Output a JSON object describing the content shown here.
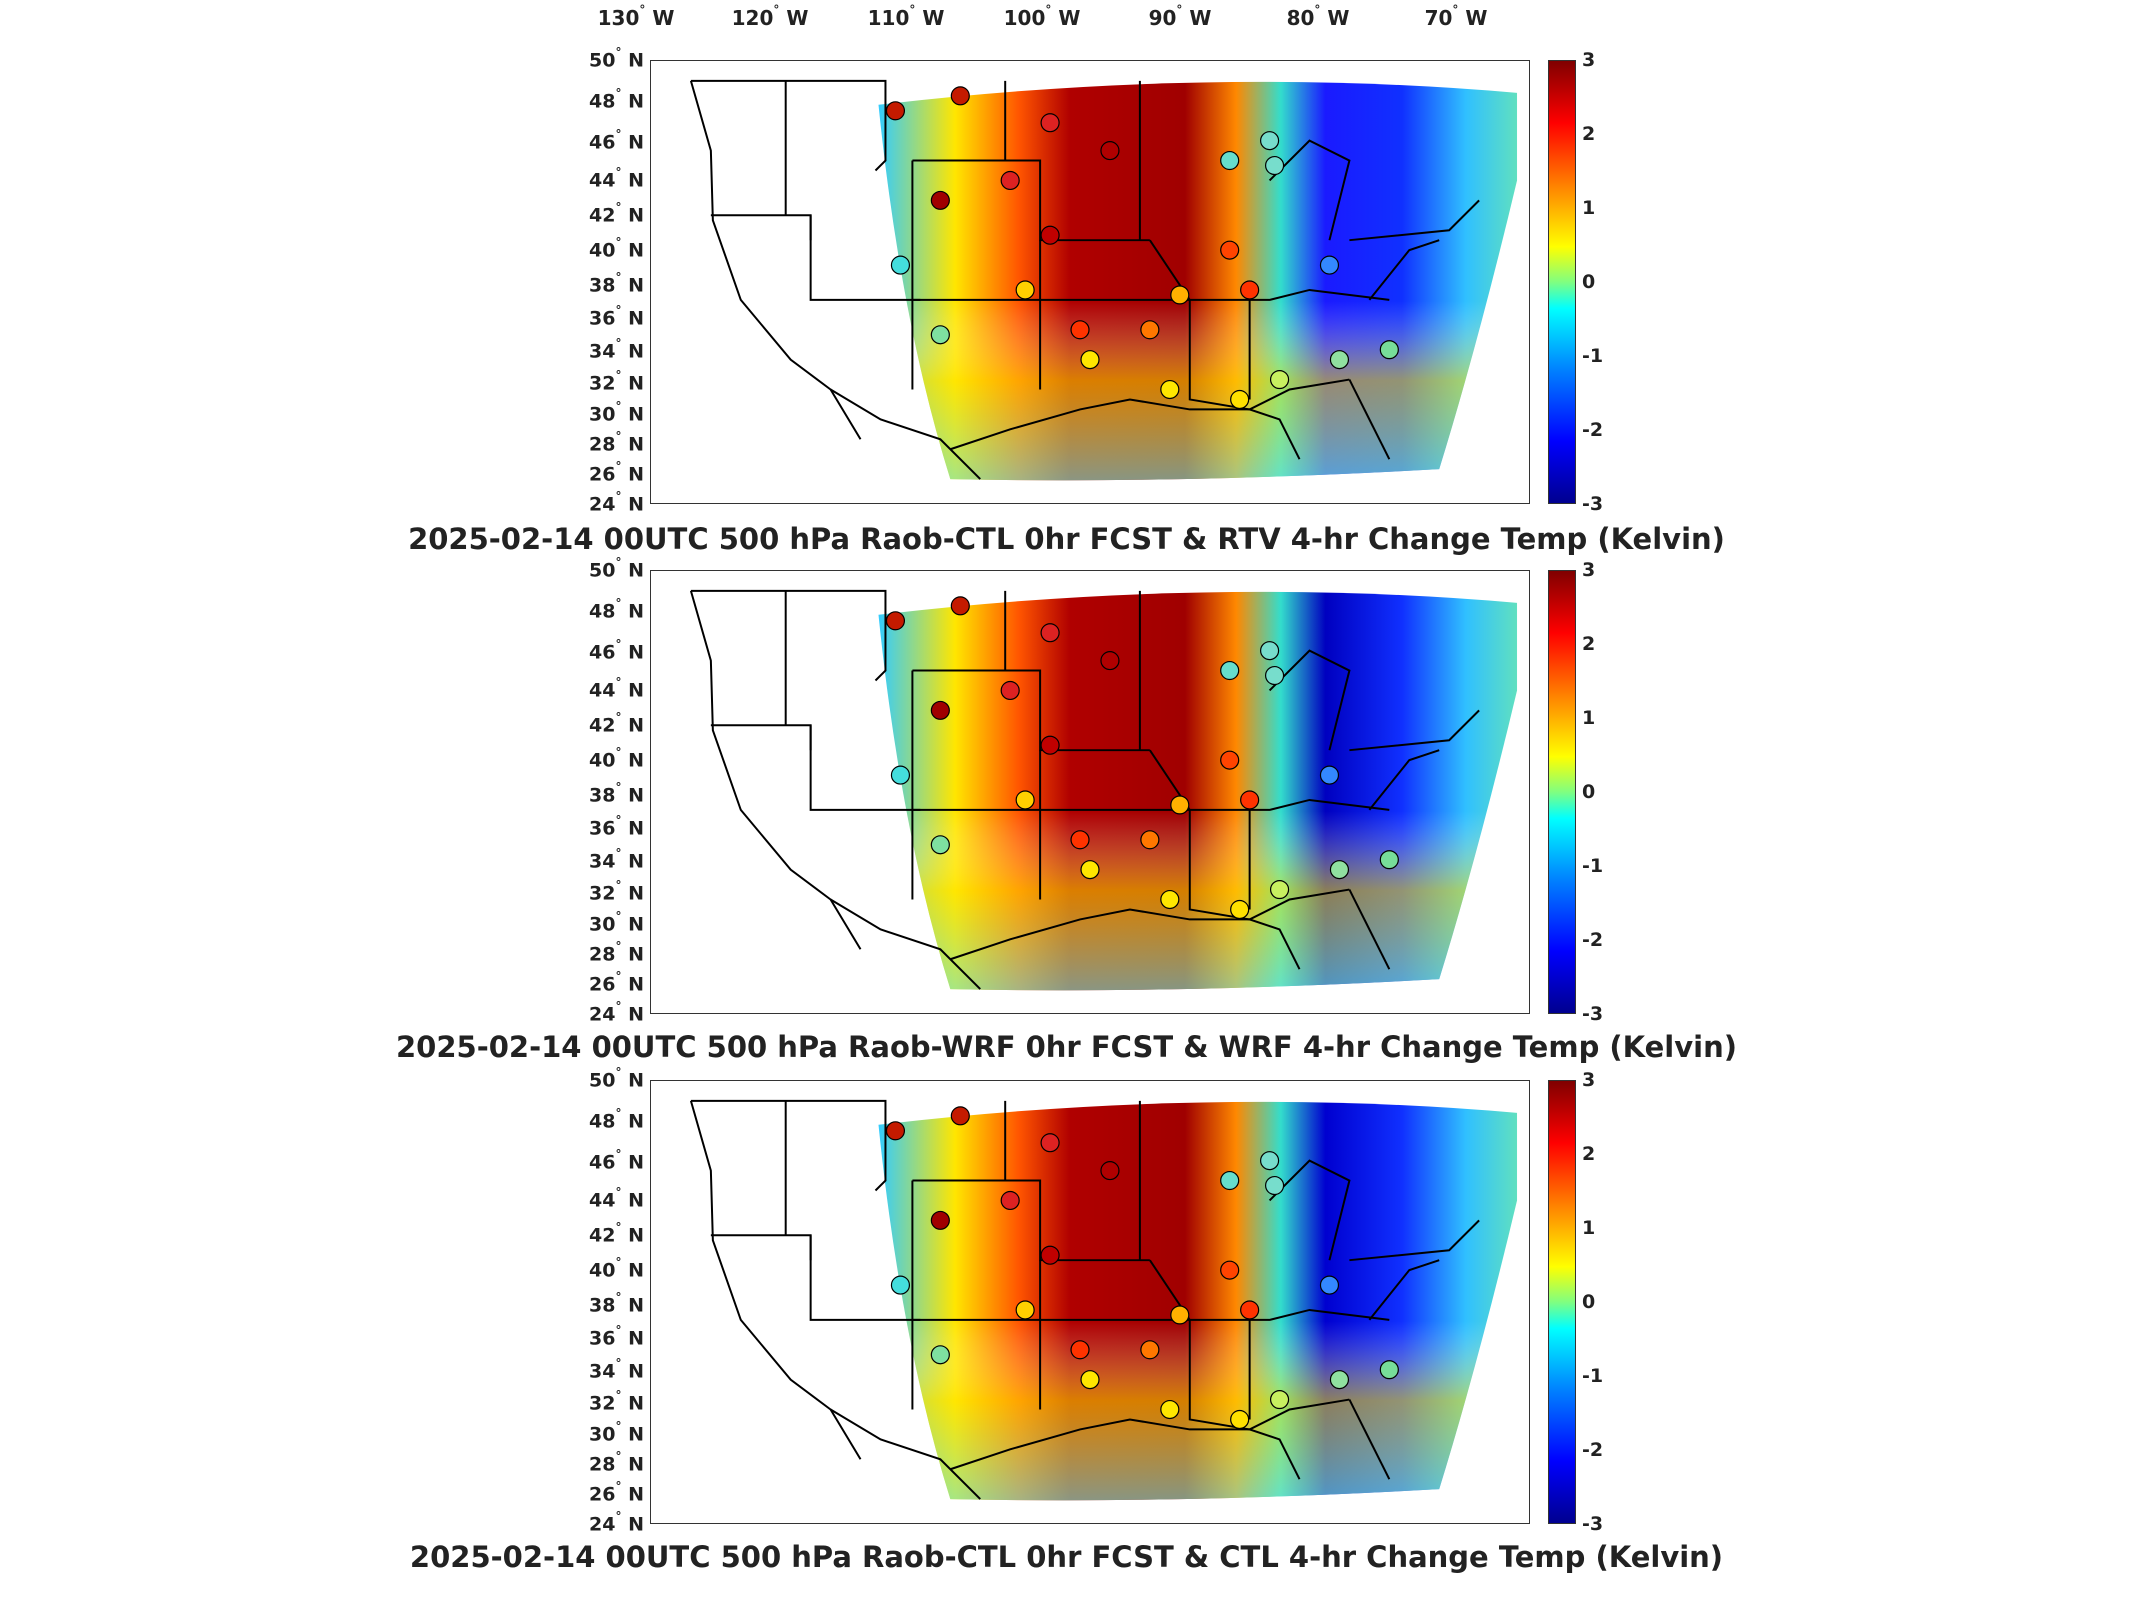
{
  "lon_labels": [
    {
      "deg": "130",
      "hemi": "W"
    },
    {
      "deg": "120",
      "hemi": "W"
    },
    {
      "deg": "110",
      "hemi": "W"
    },
    {
      "deg": "100",
      "hemi": "W"
    },
    {
      "deg": "90",
      "hemi": "W"
    },
    {
      "deg": "80",
      "hemi": "W"
    },
    {
      "deg": "70",
      "hemi": "W"
    }
  ],
  "lat_labels": [
    {
      "deg": "50",
      "hemi": "N"
    },
    {
      "deg": "48",
      "hemi": "N"
    },
    {
      "deg": "46",
      "hemi": "N"
    },
    {
      "deg": "44",
      "hemi": "N"
    },
    {
      "deg": "42",
      "hemi": "N"
    },
    {
      "deg": "40",
      "hemi": "N"
    },
    {
      "deg": "38",
      "hemi": "N"
    },
    {
      "deg": "36",
      "hemi": "N"
    },
    {
      "deg": "34",
      "hemi": "N"
    },
    {
      "deg": "32",
      "hemi": "N"
    },
    {
      "deg": "30",
      "hemi": "N"
    },
    {
      "deg": "28",
      "hemi": "N"
    },
    {
      "deg": "26",
      "hemi": "N"
    },
    {
      "deg": "24",
      "hemi": "N"
    }
  ],
  "colorbar": {
    "ticks": [
      "3",
      "2",
      "1",
      "0",
      "-1",
      "-2",
      "-3"
    ],
    "min": -3,
    "max": 3,
    "colormap": [
      "#00008f",
      "#0000ff",
      "#0080ff",
      "#00ffff",
      "#80ff80",
      "#ffff00",
      "#ff8000",
      "#ff0000",
      "#800000"
    ]
  },
  "panels": [
    {
      "title": "2025-02-14 00UTC 500 hPa Raob-CTL 0hr FCST & RTV 4-hr Change Temp (Kelvin)"
    },
    {
      "title": "2025-02-14 00UTC 500 hPa Raob-WRF 0hr FCST & WRF 4-hr Change Temp (Kelvin)"
    },
    {
      "title": "2025-02-14 00UTC 500 hPa Raob-CTL 0hr FCST & CTL 4-hr Change Temp (Kelvin)"
    }
  ]
}
